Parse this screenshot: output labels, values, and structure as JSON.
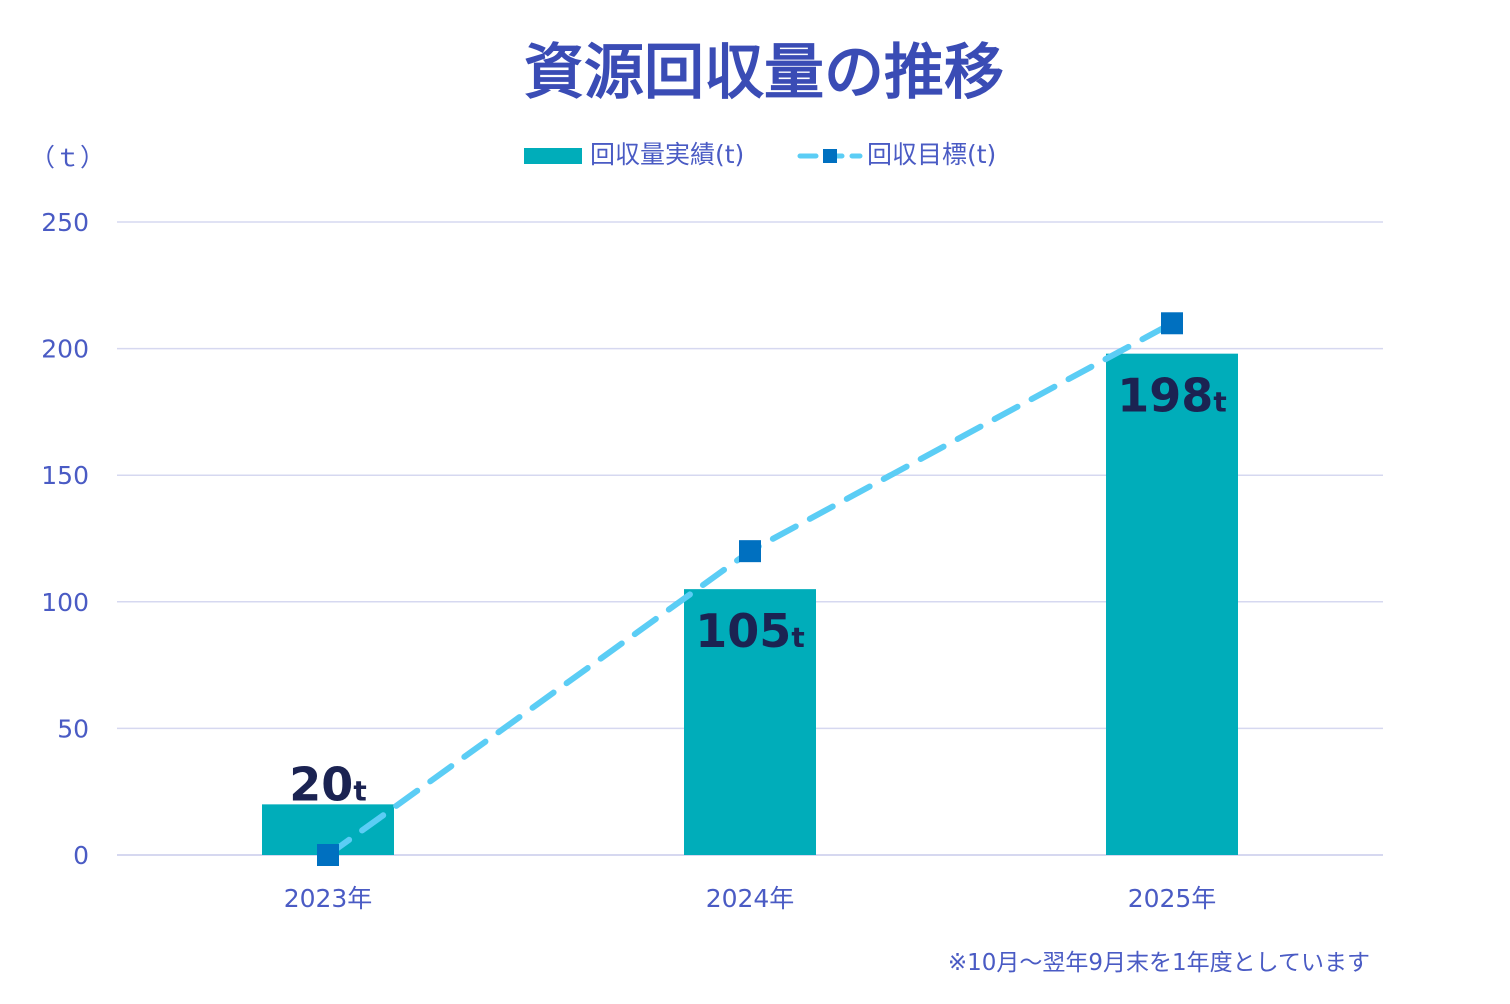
{
  "chart_data": {
    "type": "bar",
    "title": "資源回収量の推移",
    "ylabel": "（ｔ）",
    "xlabel": "",
    "ylim": [
      0,
      250
    ],
    "yticks": [
      0,
      50,
      100,
      150,
      200,
      250
    ],
    "grid": true,
    "legend_placement": "top-center",
    "categories": [
      "2023年",
      "2024年",
      "2025年"
    ],
    "series": [
      {
        "name": "回収量実績(t)",
        "type": "bar",
        "values": [
          20,
          105,
          198
        ],
        "color": "#00adba",
        "data_labels": [
          "20",
          "105",
          "198"
        ],
        "data_label_unit": "t"
      },
      {
        "name": "回収目標(t)",
        "type": "line",
        "values": [
          0,
          120,
          210
        ],
        "color": "#5bcdf5",
        "marker_color": "#0070c0"
      }
    ],
    "note": "※10月～翌年9月末を1年度としています"
  }
}
